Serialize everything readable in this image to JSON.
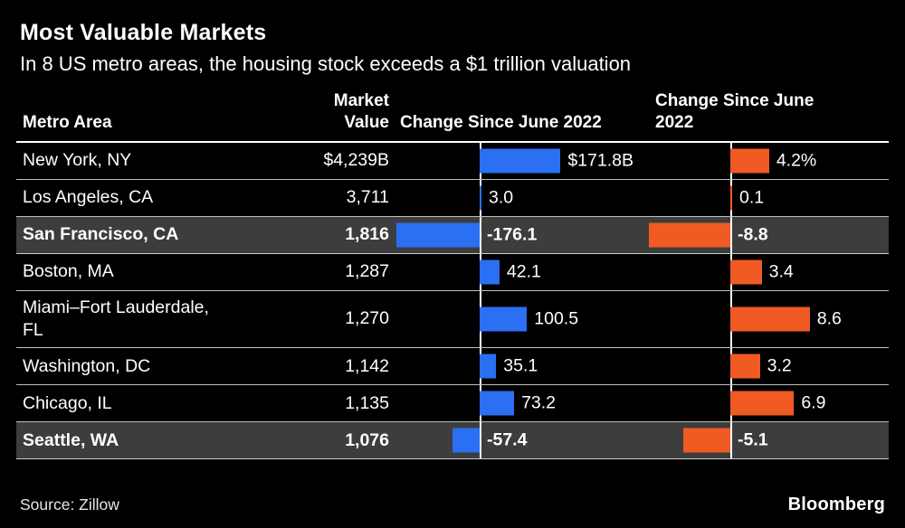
{
  "title": "Most Valuable Markets",
  "subtitle": "In 8 US metro areas, the housing stock exceeds a $1 trillion valuation",
  "source": "Source: Zillow",
  "brand": "Bloomberg",
  "colors": {
    "blue": "#2b6ff3",
    "orange": "#f05a23",
    "highlight_row": "#3d3d3d",
    "background": "#000000",
    "text": "#ffffff"
  },
  "columns": {
    "metro": "Metro Area",
    "value_line1": "Market",
    "value_line2": "Value",
    "dollar_change": "Change Since June 2022",
    "percent_change": "Change Since June 2022"
  },
  "chart_data": {
    "type": "bar",
    "orientation": "horizontal",
    "title": "Most Valuable Markets",
    "subtitle": "In 8 US metro areas, the housing stock exceeds a $1 trillion valuation",
    "source": "Zillow",
    "legend": "none",
    "columns": [
      "Metro Area",
      "Market Value",
      "Change Since June 2022 ($B)",
      "Change Since June 2022 (%)"
    ],
    "dollar_axis_range": [
      -180,
      180
    ],
    "percent_axis_range": [
      -9,
      9
    ],
    "rows": [
      {
        "metro": "New York, NY",
        "market_value": "$4,239B",
        "dollar_change": 171.8,
        "dollar_label": "$171.8B",
        "pct_change": 4.2,
        "pct_label": "4.2%",
        "highlight": false
      },
      {
        "metro": "Los Angeles, CA",
        "market_value": "3,711",
        "dollar_change": 3.0,
        "dollar_label": "3.0",
        "pct_change": 0.1,
        "pct_label": "0.1",
        "highlight": false
      },
      {
        "metro": "San Francisco, CA",
        "market_value": "1,816",
        "dollar_change": -176.1,
        "dollar_label": "-176.1",
        "pct_change": -8.8,
        "pct_label": "-8.8",
        "highlight": true
      },
      {
        "metro": "Boston, MA",
        "market_value": "1,287",
        "dollar_change": 42.1,
        "dollar_label": "42.1",
        "pct_change": 3.4,
        "pct_label": "3.4",
        "highlight": false
      },
      {
        "metro": "Miami–Fort Lauderdale, FL",
        "market_value": "1,270",
        "dollar_change": 100.5,
        "dollar_label": "100.5",
        "pct_change": 8.6,
        "pct_label": "8.6",
        "highlight": false
      },
      {
        "metro": "Washington, DC",
        "market_value": "1,142",
        "dollar_change": 35.1,
        "dollar_label": "35.1",
        "pct_change": 3.2,
        "pct_label": "3.2",
        "highlight": false
      },
      {
        "metro": "Chicago, IL",
        "market_value": "1,135",
        "dollar_change": 73.2,
        "dollar_label": "73.2",
        "pct_change": 6.9,
        "pct_label": "6.9",
        "highlight": false
      },
      {
        "metro": "Seattle, WA",
        "market_value": "1,076",
        "dollar_change": -57.4,
        "dollar_label": "-57.4",
        "pct_change": -5.1,
        "pct_label": "-5.1",
        "highlight": true
      }
    ]
  }
}
